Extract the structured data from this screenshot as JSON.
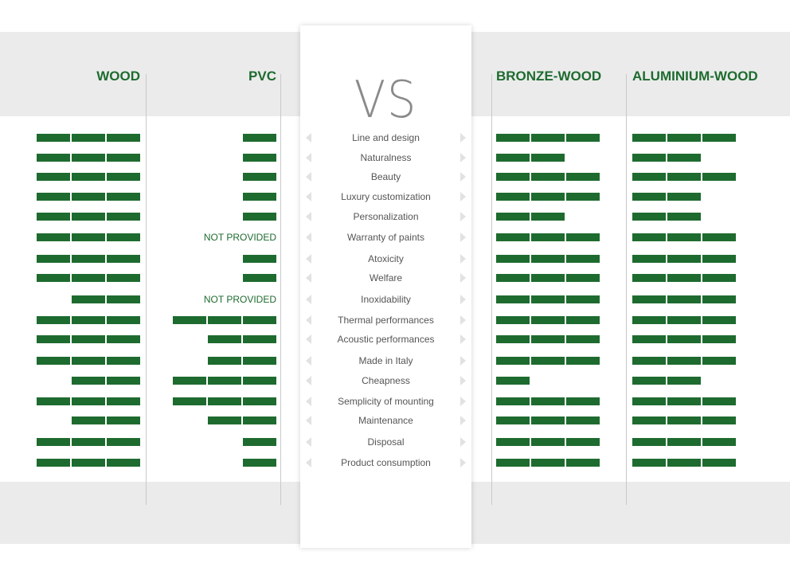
{
  "chart_data": {
    "type": "table",
    "center_label": "VS",
    "materials": [
      "WOOD",
      "PVC",
      "BRONZE-WOOD",
      "ALUMINIUM-WOOD"
    ],
    "criteria": [
      "Line and design",
      "Naturalness",
      "Beauty",
      "Luxury customization",
      "Personalization",
      "Warranty of paints",
      "Atoxicity",
      "Welfare",
      "Inoxidability",
      "Thermal performances",
      "Acoustic performances",
      "Made in Italy",
      "Cheapness",
      "Semplicity of mounting",
      "Maintenance",
      "Disposal",
      "Product consumption"
    ],
    "scale_max": 3,
    "not_provided_label": "NOT PROVIDED",
    "series": [
      {
        "name": "WOOD",
        "values": [
          3,
          3,
          3,
          3,
          3,
          3,
          3,
          3,
          2,
          3,
          3,
          3,
          2,
          3,
          2,
          3,
          3
        ]
      },
      {
        "name": "PVC",
        "values": [
          1,
          1,
          1,
          1,
          1,
          null,
          1,
          1,
          null,
          3,
          2,
          2,
          3,
          3,
          2,
          1,
          1
        ]
      },
      {
        "name": "BRONZE-WOOD",
        "values": [
          3,
          2,
          3,
          3,
          2,
          3,
          3,
          3,
          3,
          3,
          3,
          3,
          1,
          3,
          3,
          3,
          3
        ]
      },
      {
        "name": "ALUMINIUM-WOOD",
        "values": [
          3,
          2,
          3,
          2,
          2,
          3,
          3,
          3,
          3,
          3,
          3,
          3,
          2,
          3,
          3,
          3,
          3
        ]
      }
    ],
    "colors": {
      "bar": "#1e6b2f",
      "band": "#ebebeb",
      "arrow": "#e2e2e2"
    }
  }
}
